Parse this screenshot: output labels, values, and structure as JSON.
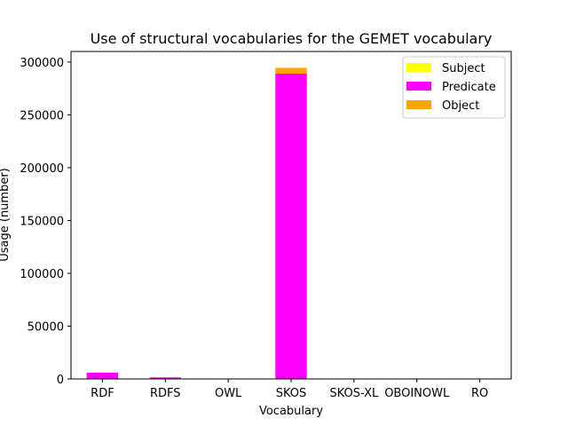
{
  "chart_data": {
    "type": "bar",
    "stacked": true,
    "title": "Use of structural vocabularies for the GEMET vocabulary",
    "xlabel": "Vocabulary",
    "ylabel": "Usage (number)",
    "categories": [
      "RDF",
      "RDFS",
      "OWL",
      "SKOS",
      "SKOS-XL",
      "OBOINOWL",
      "RO"
    ],
    "ylim": [
      0,
      310000
    ],
    "yticks": [
      0,
      50000,
      100000,
      150000,
      200000,
      250000,
      300000
    ],
    "series": [
      {
        "name": "Subject",
        "color": "#ffff00",
        "values": [
          0,
          0,
          0,
          0,
          0,
          0,
          0
        ]
      },
      {
        "name": "Predicate",
        "color": "#ff00ff",
        "values": [
          6000,
          1500,
          0,
          289000,
          0,
          0,
          0
        ]
      },
      {
        "name": "Object",
        "color": "#ffa500",
        "values": [
          0,
          200,
          0,
          5500,
          0,
          0,
          0
        ]
      }
    ],
    "legend_position": "top-right",
    "grid": false
  }
}
